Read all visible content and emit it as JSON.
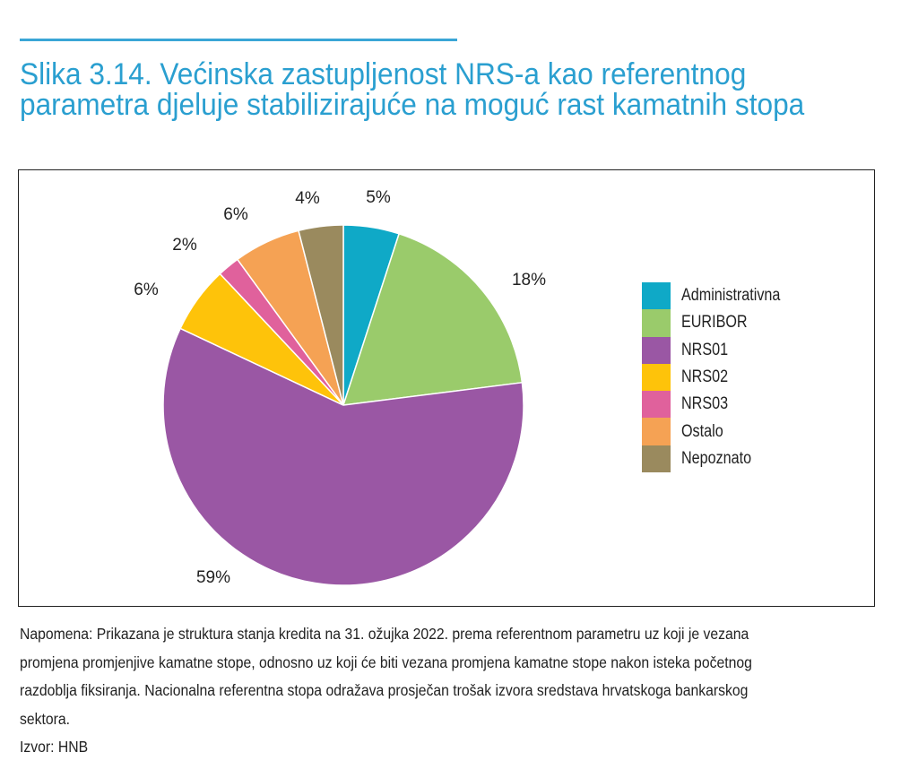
{
  "chart_data": {
    "type": "pie",
    "title": "Slika 3.14. Većinska zastupljenost NRS-a kao referentnog parametra djeluje stabilizirajuće na moguć rast kamatnih stopa",
    "categories": [
      "Administrativna",
      "EURIBOR",
      "NRS01",
      "NRS02",
      "NRS03",
      "Ostalo",
      "Nepoznato"
    ],
    "values": [
      5,
      18,
      59,
      6,
      2,
      6,
      4
    ],
    "data_labels": [
      "5%",
      "18%",
      "59%",
      "6%",
      "2%",
      "6%",
      "4%"
    ],
    "colors": [
      "#0fa9c7",
      "#9acb6b",
      "#9a57a4",
      "#fec30a",
      "#e0619c",
      "#f5a254",
      "#9a8a5e"
    ],
    "start": "top, clockwise",
    "legend_position": "right"
  },
  "title_lines": [
    "Slika 3.14. Većinska zastupljenost NRS-a kao referentnog",
    "parametra djeluje stabilizirajuće na moguć rast kamatnih stopa"
  ],
  "note_lines": [
    "Napomena: Prikazana je struktura stanja kredita na 31. ožujka 2022. prema referentnom parametru uz koji je vezana",
    "promjena promjenjive kamatne stope, odnosno uz koji će biti vezana promjena kamatne stope nakon isteka početnog",
    "razdoblja fiksiranja. Nacionalna referentna stopa odražava prosječan trošak izvora sredstava hrvatskoga bankarskog",
    "sektora."
  ],
  "source": "Izvor: HNB"
}
